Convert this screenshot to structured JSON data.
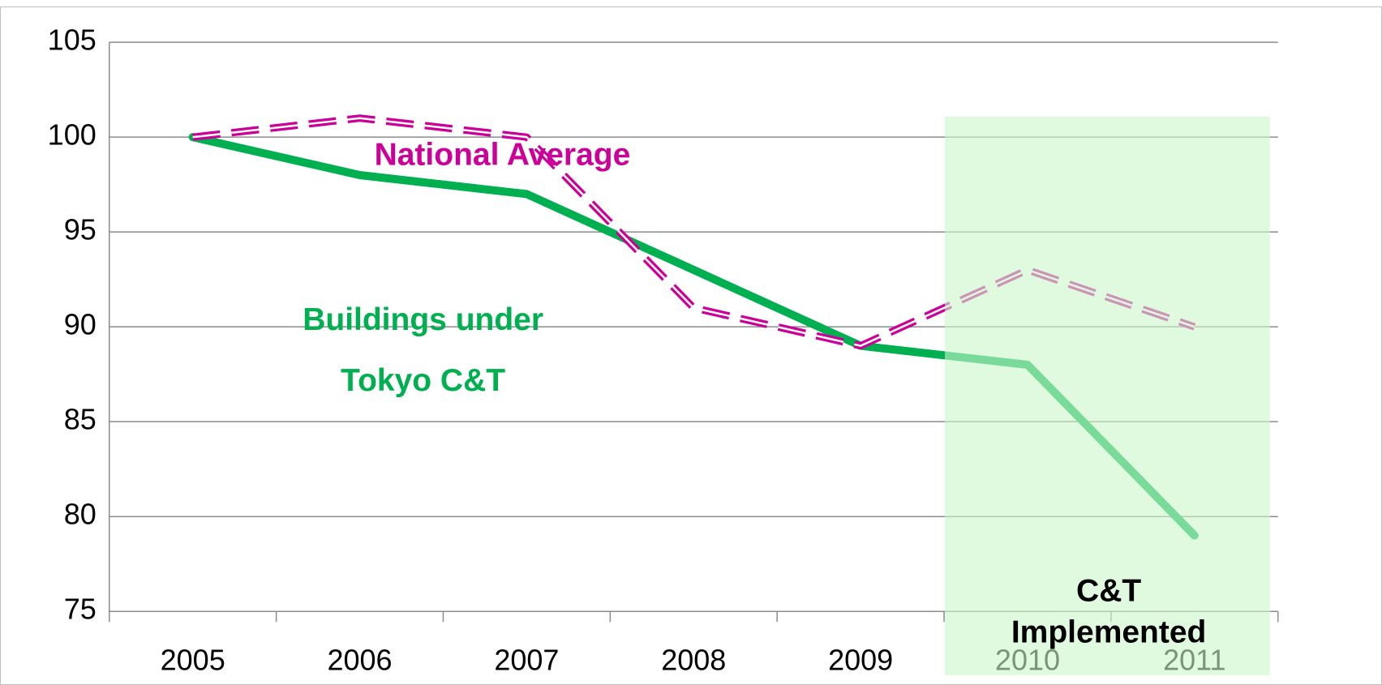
{
  "chart_data": {
    "type": "line",
    "categories": [
      "2005",
      "2006",
      "2007",
      "2008",
      "2009",
      "2010",
      "2011"
    ],
    "series": [
      {
        "name": "Buildings under Tokyo C&T",
        "color": "#00b050",
        "values": [
          100,
          98,
          97,
          93,
          89,
          88,
          79
        ]
      },
      {
        "name": "National Average",
        "color": "#cc0099",
        "values": [
          100,
          101,
          100,
          91,
          89,
          93,
          90
        ]
      }
    ],
    "ylim": [
      75,
      105
    ],
    "yticks": [
      75,
      80,
      85,
      90,
      95,
      100,
      105
    ],
    "grid": true,
    "annotations": [
      {
        "lines": [
          "National Average"
        ],
        "color": "#cc0099"
      },
      {
        "lines": [
          "Buildings under",
          "Tokyo C&T"
        ],
        "color": "#00b050"
      },
      {
        "lines": [
          "C&T",
          "Implemented"
        ],
        "color": "#000000"
      }
    ]
  }
}
